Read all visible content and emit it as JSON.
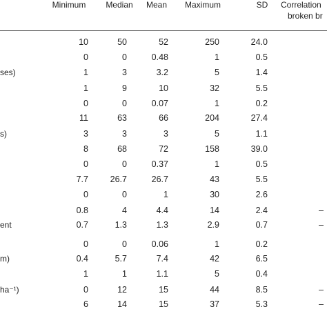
{
  "headers": {
    "minimum": "Minimum",
    "median": "Median",
    "mean": "Mean",
    "maximum": "Maximum",
    "sd": "SD",
    "correlation_line1": "Correlation",
    "correlation_line2": "broken br"
  },
  "rows": [
    {
      "label": "",
      "min": "10",
      "median": "50",
      "mean": "52",
      "max": "250",
      "sd": "24.0",
      "corr": ""
    },
    {
      "label": "",
      "min": "0",
      "median": "0",
      "mean": "0.48",
      "max": "1",
      "sd": "0.5",
      "corr": ""
    },
    {
      "label": "ses)",
      "min": "1",
      "median": "3",
      "mean": "3.2",
      "max": "5",
      "sd": "1.4",
      "corr": ""
    },
    {
      "label": "",
      "min": "1",
      "median": "9",
      "mean": "10",
      "max": "32",
      "sd": "5.5",
      "corr": ""
    },
    {
      "label": "",
      "min": "0",
      "median": "0",
      "mean": "0.07",
      "max": "1",
      "sd": "0.2",
      "corr": ""
    },
    {
      "label": "",
      "min": "11",
      "median": "63",
      "mean": "66",
      "max": "204",
      "sd": "27.4",
      "corr": ""
    },
    {
      "label": "s)",
      "min": "3",
      "median": "3",
      "mean": "3",
      "max": "5",
      "sd": "1.1",
      "corr": ""
    },
    {
      "label": "",
      "min": "8",
      "median": "68",
      "mean": "72",
      "max": "158",
      "sd": "39.0",
      "corr": ""
    },
    {
      "label": "",
      "min": "0",
      "median": "0",
      "mean": "0.37",
      "max": "1",
      "sd": "0.5",
      "corr": ""
    },
    {
      "label": "",
      "min": "7.7",
      "median": "26.7",
      "mean": "26.7",
      "max": "43",
      "sd": "5.5",
      "corr": ""
    },
    {
      "label": "",
      "min": "0",
      "median": "0",
      "mean": "1",
      "max": "30",
      "sd": "2.6",
      "corr": ""
    },
    {
      "label": "",
      "min": "0.8",
      "median": "4",
      "mean": "4.4",
      "max": "14",
      "sd": "2.4",
      "corr": "–"
    },
    {
      "label": "ent",
      "min": "0.7",
      "median": "1.3",
      "mean": "1.3",
      "max": "2.9",
      "sd": "0.7",
      "corr": "–"
    },
    {
      "label": "",
      "min": "0",
      "median": "0",
      "mean": "0.06",
      "max": "1",
      "sd": "0.2",
      "corr": ""
    },
    {
      "label": "m)",
      "min": "0.4",
      "median": "5.7",
      "mean": "7.4",
      "max": "42",
      "sd": "6.5",
      "corr": ""
    },
    {
      "label": "",
      "min": "1",
      "median": "1",
      "mean": "1.1",
      "max": "5",
      "sd": "0.4",
      "corr": ""
    },
    {
      "label": "ha⁻¹)",
      "min": "0",
      "median": "12",
      "mean": "15",
      "max": "44",
      "sd": "8.5",
      "corr": "–"
    },
    {
      "label": "",
      "min": "6",
      "median": "14",
      "mean": "15",
      "max": "37",
      "sd": "5.3",
      "corr": "–"
    }
  ]
}
